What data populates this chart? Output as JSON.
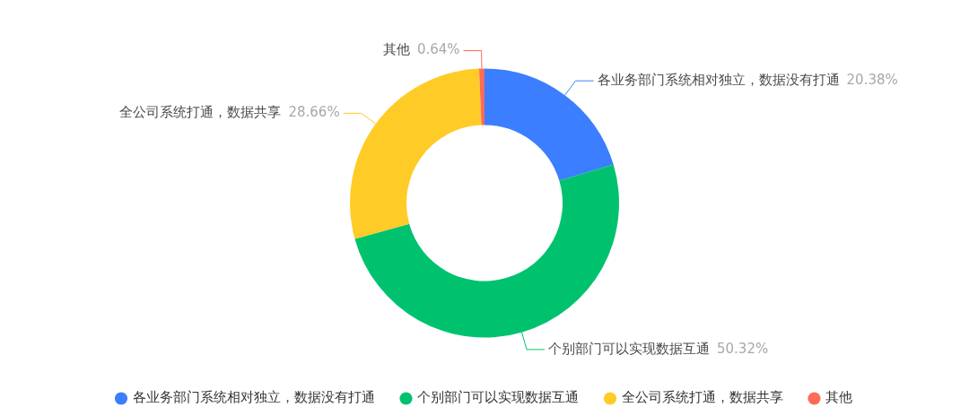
{
  "chart_data": {
    "type": "donut",
    "categories": [
      "各业务部门系统相对独立，数据没有打通",
      "个别部门可以实现数据互通",
      "全公司系统打通，数据共享",
      "其他"
    ],
    "values": [
      20.38,
      50.32,
      28.66,
      0.64
    ],
    "colors": [
      "#3b7eff",
      "#00c26e",
      "#ffcb26",
      "#fc6c58"
    ],
    "value_labels": [
      "20.38%",
      "50.32%",
      "28.66%",
      "0.64%"
    ],
    "legend": "bottom"
  }
}
